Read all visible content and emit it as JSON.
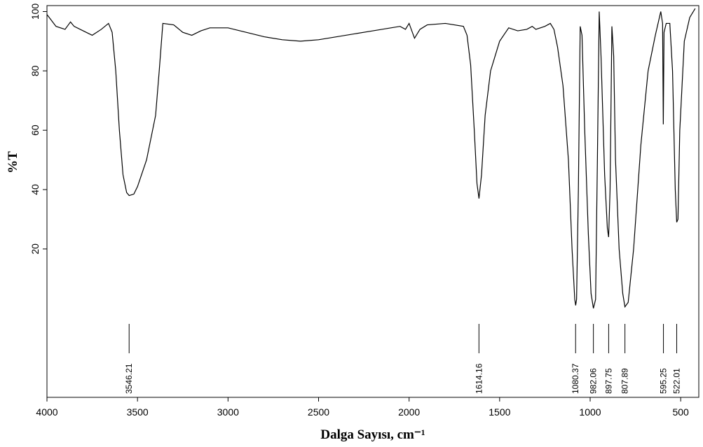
{
  "chart_data": {
    "type": "line",
    "x_label": "Dalga Sayısı, cm⁻¹",
    "y_label": "%T",
    "xlim": [
      4000,
      400
    ],
    "ylim": [
      -30,
      102
    ],
    "xticks": [
      4000,
      3500,
      3000,
      2500,
      2000,
      1500,
      1000,
      500
    ],
    "yticks": [
      20,
      40,
      60,
      80,
      100
    ],
    "peak_labels": [
      3546.21,
      1614.16,
      1080.37,
      982.06,
      897.75,
      807.89,
      595.25,
      522.01
    ],
    "series": [
      {
        "color": "#000000",
        "x": [
          4000,
          3950,
          3900,
          3870,
          3850,
          3800,
          3750,
          3700,
          3660,
          3640,
          3620,
          3600,
          3580,
          3560,
          3546,
          3520,
          3500,
          3450,
          3400,
          3380,
          3360,
          3300,
          3250,
          3200,
          3150,
          3100,
          3000,
          2900,
          2800,
          2700,
          2600,
          2500,
          2400,
          2300,
          2200,
          2100,
          2050,
          2020,
          2000,
          1970,
          1940,
          1900,
          1800,
          1700,
          1680,
          1660,
          1640,
          1625,
          1614,
          1600,
          1580,
          1550,
          1500,
          1450,
          1400,
          1350,
          1320,
          1300,
          1250,
          1220,
          1200,
          1180,
          1150,
          1120,
          1100,
          1085,
          1080,
          1075,
          1065,
          1055,
          1045,
          1030,
          1010,
          995,
          982,
          970,
          960,
          950,
          940,
          920,
          905,
          898,
          890,
          880,
          870,
          860,
          840,
          820,
          808,
          790,
          760,
          720,
          680,
          640,
          610,
          600,
          596,
          592,
          580,
          560,
          545,
          530,
          522,
          515,
          505,
          480,
          450,
          420
        ],
        "values": [
          99,
          95,
          94,
          96.5,
          95,
          93.5,
          92,
          94,
          96,
          93,
          80,
          60,
          45,
          39,
          38,
          38.5,
          41,
          50,
          65,
          80,
          96,
          95.5,
          93,
          92,
          93.5,
          94.5,
          94.5,
          93,
          91.5,
          90.5,
          90,
          90.5,
          91.5,
          92.5,
          93.5,
          94.5,
          95,
          94,
          96,
          91,
          94,
          95.5,
          96,
          95,
          92,
          82,
          60,
          42,
          37,
          45,
          65,
          80,
          90,
          94.5,
          93.5,
          94,
          95,
          94,
          95,
          96,
          94,
          88,
          75,
          50,
          20,
          3,
          1,
          3,
          40,
          95,
          92,
          60,
          25,
          5,
          0,
          3,
          50,
          100,
          85,
          45,
          27,
          24,
          40,
          95,
          85,
          50,
          20,
          5,
          0.5,
          2,
          20,
          55,
          80,
          92,
          100,
          96,
          62,
          93,
          96,
          96,
          80,
          40,
          29,
          30,
          60,
          90,
          98,
          101
        ]
      }
    ]
  }
}
